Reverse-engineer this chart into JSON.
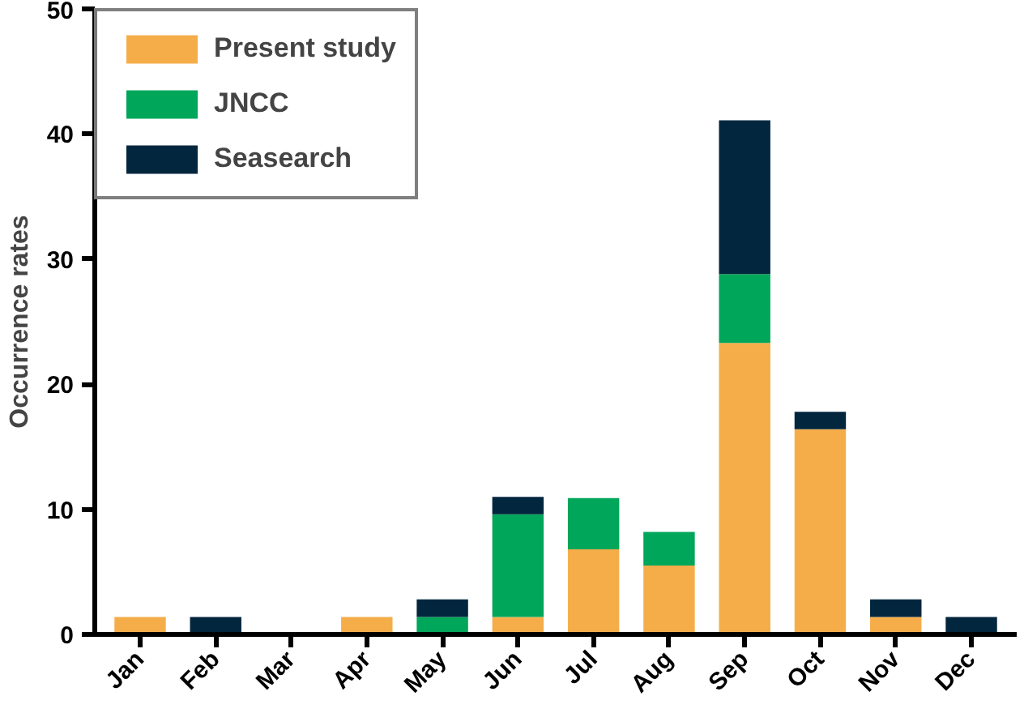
{
  "chart_data": {
    "type": "bar",
    "stacked": true,
    "ylabel": "Occurrence rates",
    "categories": [
      "Jan",
      "Feb",
      "Mar",
      "Apr",
      "May",
      "Jun",
      "Jul",
      "Aug",
      "Sep",
      "Oct",
      "Nov",
      "Dec"
    ],
    "series": [
      {
        "name": "Present study",
        "color": "#f5ad4a",
        "values": [
          1.4,
          0,
          0,
          1.4,
          0,
          1.4,
          6.8,
          5.5,
          23.3,
          16.4,
          1.4,
          0
        ]
      },
      {
        "name": "JNCC",
        "color": "#00a659",
        "values": [
          0,
          0,
          0,
          0,
          1.4,
          8.2,
          4.1,
          2.7,
          5.5,
          0,
          0,
          0
        ]
      },
      {
        "name": "Seasearch",
        "color": "#02263e",
        "values": [
          0,
          1.4,
          0,
          0,
          1.4,
          1.4,
          0,
          0,
          12.3,
          1.4,
          1.4,
          1.4
        ]
      }
    ],
    "ylim": [
      0,
      50
    ],
    "yticks": [
      0,
      10,
      20,
      30,
      40,
      50
    ],
    "grid": false,
    "legend": "top left"
  }
}
